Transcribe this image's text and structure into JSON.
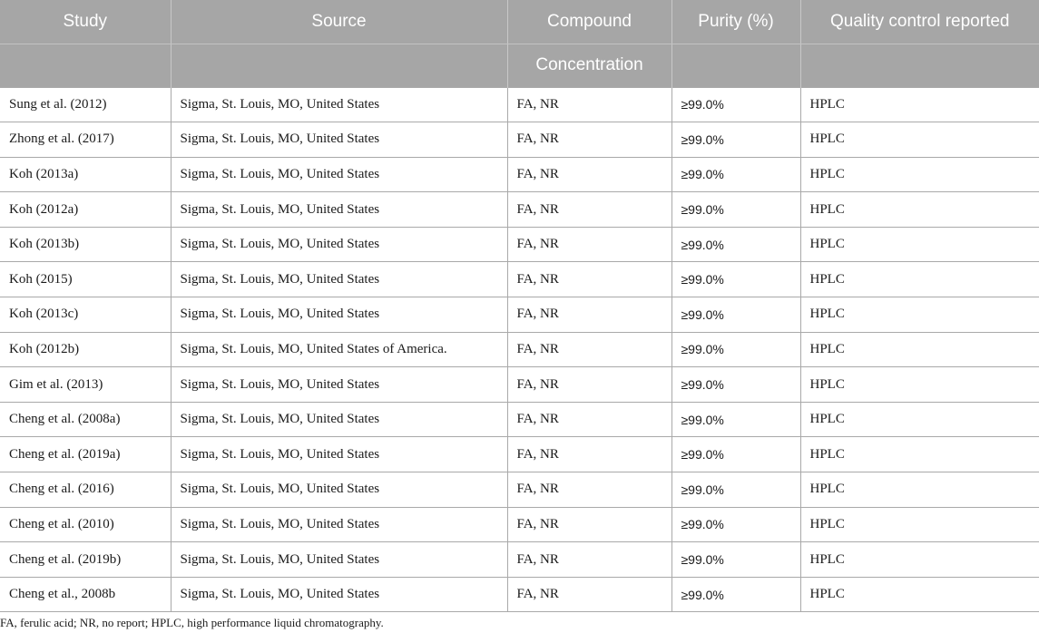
{
  "table": {
    "headers": {
      "study": "Study",
      "source": "Source",
      "compound": "Compound",
      "concentration": "Concentration",
      "purity": "Purity (%)",
      "quality": "Quality control reported"
    },
    "rows": [
      {
        "study": "Sung et al. (2012)",
        "source": "Sigma, St. Louis, MO, United States",
        "compound": "FA, NR",
        "purity": "≥99.0%",
        "quality": "HPLC"
      },
      {
        "study": "Zhong et al. (2017)",
        "source": "Sigma, St. Louis, MO, United States",
        "compound": "FA, NR",
        "purity": "≥99.0%",
        "quality": "HPLC"
      },
      {
        "study": "Koh (2013a)",
        "source": "Sigma, St. Louis, MO, United States",
        "compound": "FA, NR",
        "purity": "≥99.0%",
        "quality": "HPLC"
      },
      {
        "study": "Koh (2012a)",
        "source": "Sigma, St. Louis, MO, United States",
        "compound": "FA, NR",
        "purity": "≥99.0%",
        "quality": "HPLC"
      },
      {
        "study": "Koh (2013b)",
        "source": "Sigma, St. Louis, MO, United States",
        "compound": "FA, NR",
        "purity": "≥99.0%",
        "quality": "HPLC"
      },
      {
        "study": "Koh (2015)",
        "source": "Sigma, St. Louis, MO, United States",
        "compound": "FA, NR",
        "purity": "≥99.0%",
        "quality": "HPLC"
      },
      {
        "study": "Koh (2013c)",
        "source": "Sigma, St. Louis, MO, United States",
        "compound": "FA, NR",
        "purity": "≥99.0%",
        "quality": "HPLC"
      },
      {
        "study": "Koh (2012b)",
        "source": "Sigma, St. Louis, MO, United States of America.",
        "compound": "FA, NR",
        "purity": "≥99.0%",
        "quality": "HPLC"
      },
      {
        "study": "Gim et al. (2013)",
        "source": "Sigma, St. Louis, MO, United States",
        "compound": "FA, NR",
        "purity": "≥99.0%",
        "quality": "HPLC"
      },
      {
        "study": "Cheng et al. (2008a)",
        "source": "Sigma, St. Louis, MO, United States",
        "compound": "FA, NR",
        "purity": "≥99.0%",
        "quality": "HPLC"
      },
      {
        "study": "Cheng et al. (2019a)",
        "source": "Sigma, St. Louis, MO, United States",
        "compound": "FA, NR",
        "purity": "≥99.0%",
        "quality": "HPLC"
      },
      {
        "study": "Cheng et al. (2016)",
        "source": "Sigma, St. Louis, MO, United States",
        "compound": "FA, NR",
        "purity": "≥99.0%",
        "quality": "HPLC"
      },
      {
        "study": "Cheng et al. (2010)",
        "source": "Sigma, St. Louis, MO, United States",
        "compound": "FA, NR",
        "purity": "≥99.0%",
        "quality": "HPLC"
      },
      {
        "study": "Cheng et al. (2019b)",
        "source": "Sigma, St. Louis, MO, United States",
        "compound": "FA, NR",
        "purity": "≥99.0%",
        "quality": "HPLC"
      },
      {
        "study": "Cheng et al., 2008b",
        "source": "Sigma, St. Louis, MO, United States",
        "compound": "FA, NR",
        "purity": "≥99.0%",
        "quality": "HPLC"
      }
    ]
  },
  "footnote": "FA, ferulic acid; NR, no report; HPLC, high performance liquid chromatography.",
  "colors": {
    "header_bg": "#a6a6a6",
    "header_text": "#ffffff",
    "grid_line": "#a9a9a9"
  }
}
